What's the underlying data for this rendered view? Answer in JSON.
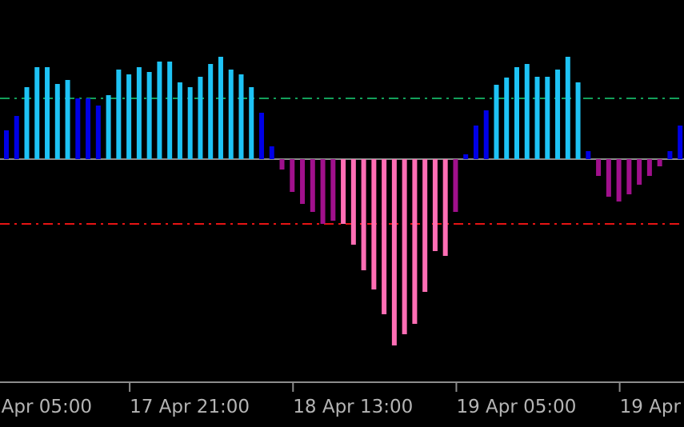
{
  "chart_data": {
    "type": "bar",
    "values": [
      36,
      54,
      90,
      115,
      115,
      94,
      99,
      76,
      76,
      67,
      80,
      112,
      106,
      115,
      109,
      122,
      122,
      96,
      90,
      103,
      119,
      128,
      112,
      106,
      90,
      58,
      16,
      -13,
      -41,
      -56,
      -66,
      -81,
      -77,
      -81,
      -107,
      -139,
      -163,
      -194,
      -233,
      -219,
      -206,
      -166,
      -115,
      -121,
      -66,
      6,
      42,
      61,
      93,
      102,
      115,
      119,
      103,
      103,
      112,
      128,
      96,
      10,
      -21,
      -47,
      -53,
      -44,
      -32,
      -21,
      -9,
      10,
      42
    ],
    "colors": [
      "#0000e6",
      "#0000e6",
      "#1ec3f5",
      "#1ec3f5",
      "#1ec3f5",
      "#1ec3f5",
      "#1ec3f5",
      "#0000e6",
      "#0000e6",
      "#0000e6",
      "#1ec3f5",
      "#1ec3f5",
      "#1ec3f5",
      "#1ec3f5",
      "#1ec3f5",
      "#1ec3f5",
      "#1ec3f5",
      "#1ec3f5",
      "#1ec3f5",
      "#1ec3f5",
      "#1ec3f5",
      "#1ec3f5",
      "#1ec3f5",
      "#1ec3f5",
      "#1ec3f5",
      "#0000e6",
      "#0000e6",
      "#a0108c",
      "#a0108c",
      "#a0108c",
      "#a0108c",
      "#a0108c",
      "#a0108c",
      "#ff6eb4",
      "#ff6eb4",
      "#ff6eb4",
      "#ff6eb4",
      "#ff6eb4",
      "#ff6eb4",
      "#ff6eb4",
      "#ff6eb4",
      "#ff6eb4",
      "#ff6eb4",
      "#ff6eb4",
      "#a0108c",
      "#0000e6",
      "#0000e6",
      "#0000e6",
      "#1ec3f5",
      "#1ec3f5",
      "#1ec3f5",
      "#1ec3f5",
      "#1ec3f5",
      "#1ec3f5",
      "#1ec3f5",
      "#1ec3f5",
      "#1ec3f5",
      "#0000e6",
      "#a0108c",
      "#a0108c",
      "#a0108c",
      "#a0108c",
      "#a0108c",
      "#a0108c",
      "#a0108c",
      "#0000e6",
      "#0000e6"
    ],
    "categories": [
      null,
      null,
      null,
      null,
      null,
      null,
      null,
      null,
      null,
      null,
      null,
      null,
      "17 Apr 21:00",
      null,
      null,
      null,
      null,
      null,
      null,
      null,
      null,
      null,
      null,
      null,
      null,
      null,
      null,
      null,
      "18 Apr 13:00",
      null,
      null,
      null,
      null,
      null,
      null,
      null,
      null,
      null,
      null,
      null,
      null,
      null,
      null,
      null,
      "19 Apr 05:00",
      null,
      null,
      null,
      null,
      null,
      null,
      null,
      null,
      null,
      null,
      null,
      null,
      null,
      null,
      null,
      "19 Apr",
      null,
      null,
      null,
      null,
      null,
      null
    ],
    "first_label": "Apr 05:00",
    "ylim": [
      -279,
      199
    ],
    "levels": [
      {
        "value": 76,
        "color": "#12a05a"
      },
      {
        "value": -81,
        "color": "#e61414"
      },
      {
        "value": 0,
        "color": "#8c8c8c"
      }
    ]
  }
}
